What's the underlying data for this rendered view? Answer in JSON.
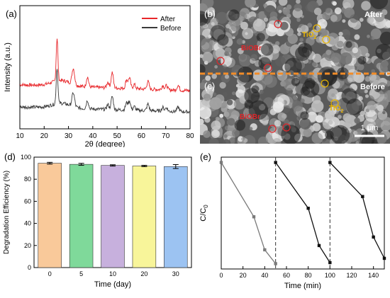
{
  "panels": {
    "a": {
      "label": "(a)"
    },
    "b": {
      "label": "(b)"
    },
    "c": {
      "label": "(c)"
    },
    "d": {
      "label": "(d)"
    },
    "e": {
      "label": "(e)"
    }
  },
  "sem": {
    "after_label": "After",
    "before_label": "Before",
    "biobr_top": "BiOBr",
    "tio2_top_main": "TiO",
    "tio2_top_sub": "2",
    "biobr_bottom": "BiOBr",
    "tio2_bottom_main": "TiO",
    "tio2_bottom_sub": "2",
    "scale_bar": "1 μm",
    "colors": {
      "divider": "#f28c28",
      "biobr": "#e0262a",
      "tio2": "#e8b400"
    }
  },
  "chart_data": [
    {
      "id": "xrd",
      "type": "line",
      "xlabel": "2θ (degree)",
      "ylabel": "Intensity (a.u.)",
      "xlim": [
        10,
        80
      ],
      "xticks": [
        10,
        20,
        30,
        40,
        50,
        60,
        70,
        80
      ],
      "yticks_shown": false,
      "legend_position": "top-right",
      "peaks": [
        25.3,
        31.7,
        32.2,
        37.8,
        46.2,
        48.0,
        53.9,
        55.1,
        57.1,
        62.7,
        68.8,
        70.3,
        75.1
      ],
      "series": [
        {
          "name": "After",
          "color": "#e8262a",
          "offset": 1.0
        },
        {
          "name": "Before",
          "color": "#3a3a3a",
          "offset": 0.0
        }
      ]
    },
    {
      "id": "stability",
      "type": "bar",
      "xlabel": "Time (day)",
      "ylabel": "Degradation Efficiency (%)",
      "ylim": [
        0,
        100
      ],
      "yticks": [
        0,
        20,
        40,
        60,
        80,
        100
      ],
      "categories": [
        "0",
        "5",
        "10",
        "20",
        "30"
      ],
      "values": [
        94.5,
        93.5,
        92.5,
        92.0,
        91.5
      ],
      "errors": [
        0.8,
        0.9,
        0.6,
        0.6,
        1.8
      ],
      "colors": [
        "#f9c99a",
        "#7fd99a",
        "#c7b0dd",
        "#f8f59a",
        "#9cc3f2"
      ]
    },
    {
      "id": "cycling",
      "type": "line",
      "xlabel": "Time (min)",
      "ylabel_main": "C/C",
      "ylabel_sub": "0",
      "xlim": [
        0,
        150
      ],
      "ylim": [
        0,
        1.05
      ],
      "xticks": [
        0,
        20,
        40,
        60,
        80,
        100,
        120,
        140
      ],
      "dashed_lines_at": [
        50,
        100
      ],
      "series": [
        {
          "name": "",
          "color": "#7a7a7a",
          "x": [
            0,
            30,
            40,
            50
          ],
          "y": [
            1.0,
            0.49,
            0.18,
            0.05
          ]
        },
        {
          "name": "",
          "color": "#111111",
          "x": [
            50,
            80,
            90,
            100
          ],
          "y": [
            1.0,
            0.57,
            0.22,
            0.06
          ]
        },
        {
          "name": "",
          "color": "#111111",
          "x": [
            100,
            130,
            140,
            150
          ],
          "y": [
            1.0,
            0.68,
            0.3,
            0.1
          ]
        }
      ]
    }
  ]
}
